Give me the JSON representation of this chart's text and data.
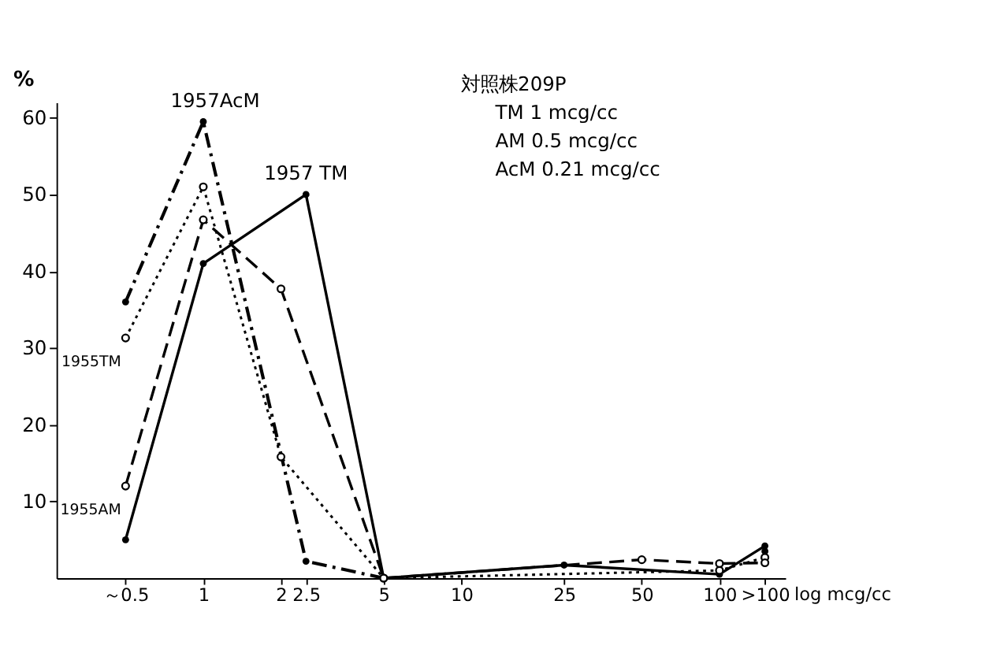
{
  "chart_data": {
    "type": "line",
    "ylabel": "%",
    "xlabel": "log mcg/cc",
    "log": "x",
    "xlim": [
      0.27,
      180
    ],
    "xticks": [
      {
        "value": 0.5,
        "label": "～0.5"
      },
      1,
      2,
      2.5,
      5,
      10,
      25,
      50,
      100,
      {
        "value": 150,
        "label": ">100"
      }
    ],
    "ylim": [
      0,
      62
    ],
    "yticks": [
      10,
      20,
      30,
      40,
      50,
      60
    ],
    "grid": false,
    "marker": "circle",
    "series": [
      {
        "name": "1957AcM",
        "color": "#000000",
        "line_style": "dashed",
        "x": [
          0.5,
          1,
          2.5,
          5,
          100,
          150
        ],
        "values": [
          36,
          59.5,
          2.2,
          0,
          null,
          3.5
        ]
      },
      {
        "name": "1957 TM",
        "color": "#000000",
        "line_style": "solid",
        "x": [
          0.5,
          1,
          2.5,
          5,
          25,
          100,
          150
        ],
        "values": [
          5,
          41,
          50,
          0,
          1.7,
          0.5,
          4.2
        ]
      },
      {
        "name": "1955TM",
        "color": "#000000",
        "line_style": "dotted",
        "x": [
          0.5,
          1,
          2,
          5,
          100,
          150
        ],
        "values": [
          31.3,
          51,
          15.8,
          0,
          1,
          2.7
        ]
      },
      {
        "name": "1955AM",
        "color": "#000000",
        "line_style": "dashed",
        "x": [
          0.5,
          1,
          2,
          5,
          50,
          100,
          150
        ],
        "values": [
          12,
          46.7,
          37.7,
          0,
          2.4,
          1.9,
          2
        ]
      }
    ],
    "annotations": [
      "対照株209P",
      "TM 1 mcg/cc",
      "AM 0.5 mcg/cc",
      "AcM 0.21 mcg/cc"
    ]
  }
}
